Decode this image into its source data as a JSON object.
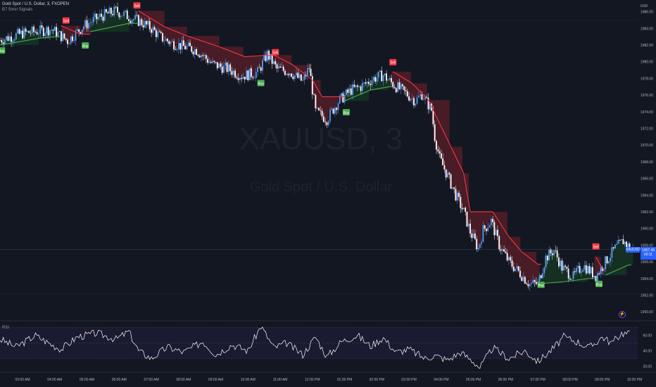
{
  "header": {
    "title": "Gold Spot / U.S. Dollar, 3, FXOPEN",
    "indicator": "B7 5min Signals"
  },
  "watermark": {
    "symbol": "XAUUSD, 3",
    "name": "Gold Spot / U.S. Dollar"
  },
  "price_tag": {
    "symbol": "XAUUSD",
    "price": "1957.49",
    "countdown": "00:11"
  },
  "zoom_icon": "lightning-icon",
  "rsi_label": "RSI",
  "colors": {
    "background": "#131722",
    "candle_up": "#5d9cf6",
    "candle_down": "#ffffff",
    "stop_red": "#f23645",
    "stop_green": "#4caf50",
    "fill_red": "#5a1f28",
    "fill_green": "#173824",
    "rsi_line": "#ffffff",
    "price_tag": "#2962ff"
  },
  "chart_data": [
    {
      "type": "candlestick",
      "title": "Gold Spot / U.S. Dollar, 3, FXOPEN",
      "yunit": "USD",
      "ylim": [
        1949,
        1987.4
      ],
      "y_ticks": [
        "1950.00",
        "1952.00",
        "1954.00",
        "1956.00",
        "1958.00",
        "1960.00",
        "1962.00",
        "1964.00",
        "1966.00",
        "1968.00",
        "1970.00",
        "1972.00",
        "1974.00",
        "1976.00",
        "1978.00",
        "1980.00",
        "1982.00",
        "1984.00",
        "1986.00"
      ],
      "x_ticks": [
        "03:00 AM",
        "04:00 AM",
        "05:00 AM",
        "06:00 AM",
        "07:00 AM",
        "08:00 AM",
        "09:00 AM",
        "10:00 AM",
        "11:00 AM",
        "12:00 PM",
        "01:00 PM",
        "02:00 PM",
        "03:00 PM",
        "04:00 PM",
        "05:00 PM",
        "06:00 PM",
        "07:00 PM",
        "08:00 PM",
        "09:00 PM",
        "10:00 PM"
      ],
      "x_range_hours": [
        2.3,
        22.1
      ],
      "price_path": [
        [
          2.3,
          1982.6
        ],
        [
          3.0,
          1983.4
        ],
        [
          3.9,
          1983.9
        ],
        [
          4.4,
          1982.5
        ],
        [
          4.9,
          1984.3
        ],
        [
          5.4,
          1985.4
        ],
        [
          5.9,
          1986.1
        ],
        [
          6.3,
          1985.4
        ],
        [
          6.7,
          1984.7
        ],
        [
          7.0,
          1984.0
        ],
        [
          7.3,
          1982.9
        ],
        [
          7.6,
          1982.3
        ],
        [
          8.0,
          1981.8
        ],
        [
          8.4,
          1981.4
        ],
        [
          8.9,
          1979.7
        ],
        [
          9.4,
          1979.1
        ],
        [
          9.8,
          1978.3
        ],
        [
          10.3,
          1978.7
        ],
        [
          10.6,
          1980.9
        ],
        [
          10.9,
          1979.1
        ],
        [
          11.3,
          1978.8
        ],
        [
          11.7,
          1977.6
        ],
        [
          11.9,
          1979.3
        ],
        [
          12.1,
          1974.0
        ],
        [
          12.45,
          1973.1
        ],
        [
          12.8,
          1975.2
        ],
        [
          13.2,
          1976.6
        ],
        [
          13.5,
          1977.0
        ],
        [
          13.9,
          1978.0
        ],
        [
          14.2,
          1978.4
        ],
        [
          14.5,
          1977.3
        ],
        [
          14.9,
          1976.2
        ],
        [
          15.2,
          1975.3
        ],
        [
          15.4,
          1976.1
        ],
        [
          15.7,
          1974.2
        ],
        [
          15.8,
          1971.0
        ],
        [
          15.95,
          1968.4
        ],
        [
          16.2,
          1966.3
        ],
        [
          16.45,
          1964.0
        ],
        [
          16.7,
          1962.0
        ],
        [
          16.9,
          1959.6
        ],
        [
          17.15,
          1957.6
        ],
        [
          17.3,
          1959.8
        ],
        [
          17.55,
          1960.9
        ],
        [
          17.8,
          1958.0
        ],
        [
          18.1,
          1956.0
        ],
        [
          18.45,
          1954.6
        ],
        [
          18.75,
          1953.3
        ],
        [
          19.0,
          1953.4
        ],
        [
          19.25,
          1956.5
        ],
        [
          19.5,
          1957.4
        ],
        [
          19.75,
          1955.3
        ],
        [
          20.1,
          1954.2
        ],
        [
          20.4,
          1955.6
        ],
        [
          20.8,
          1954.3
        ],
        [
          21.1,
          1956.0
        ],
        [
          21.4,
          1957.6
        ],
        [
          21.65,
          1958.5
        ],
        [
          21.9,
          1957.49
        ]
      ],
      "stop_line": [
        [
          2.3,
          1982.0,
          "green"
        ],
        [
          3.5,
          1982.8,
          "green"
        ],
        [
          4.0,
          1983.0,
          "green"
        ],
        [
          4.2,
          1984.3,
          "red"
        ],
        [
          4.8,
          1983.3,
          "red"
        ],
        [
          5.1,
          1983.6,
          "green"
        ],
        [
          6.3,
          1984.6,
          "green"
        ],
        [
          6.6,
          1986.1,
          "red"
        ],
        [
          7.4,
          1984.2,
          "red"
        ],
        [
          8.1,
          1983.1,
          "red"
        ],
        [
          9.1,
          1981.8,
          "red"
        ],
        [
          9.9,
          1980.6,
          "red"
        ],
        [
          10.8,
          1980.8,
          "red"
        ],
        [
          11.4,
          1979.6,
          "red"
        ],
        [
          12.0,
          1977.8,
          "red"
        ],
        [
          12.3,
          1975.8,
          "red"
        ],
        [
          12.8,
          1975.8,
          "red"
        ],
        [
          13.0,
          1975.3,
          "green"
        ],
        [
          13.8,
          1976.6,
          "green"
        ],
        [
          14.4,
          1977.0,
          "green"
        ],
        [
          14.5,
          1978.8,
          "red"
        ],
        [
          15.1,
          1977.4,
          "red"
        ],
        [
          15.6,
          1975.4,
          "red"
        ],
        [
          16.3,
          1969.8,
          "red"
        ],
        [
          16.7,
          1966.6,
          "red"
        ],
        [
          16.9,
          1962.0,
          "red"
        ],
        [
          17.6,
          1962.0,
          "red"
        ],
        [
          18.1,
          1959.0,
          "red"
        ],
        [
          18.5,
          1957.2,
          "red"
        ],
        [
          19.0,
          1955.7,
          "red"
        ],
        [
          19.1,
          1953.4,
          "green"
        ],
        [
          19.8,
          1953.6,
          "green"
        ],
        [
          20.6,
          1954.0,
          "green"
        ],
        [
          20.8,
          1956.6,
          "red"
        ],
        [
          21.0,
          1955.2,
          "red"
        ],
        [
          21.1,
          1954.4,
          "green"
        ],
        [
          21.8,
          1955.6,
          "green"
        ]
      ],
      "signals": [
        {
          "label": "Sell",
          "hour": 4.35,
          "price": 1984.9,
          "side": "sell"
        },
        {
          "label": "Buy",
          "hour": 2.35,
          "price": 1981.3,
          "side": "buy"
        },
        {
          "label": "Buy",
          "hour": 4.95,
          "price": 1981.9,
          "side": "buy"
        },
        {
          "label": "Sell",
          "hour": 6.55,
          "price": 1986.7,
          "side": "sell"
        },
        {
          "label": "Sell",
          "hour": 10.85,
          "price": 1981.1,
          "side": "sell"
        },
        {
          "label": "Buy",
          "hour": 10.4,
          "price": 1977.4,
          "side": "buy"
        },
        {
          "label": "Buy",
          "hour": 13.05,
          "price": 1973.9,
          "side": "buy"
        },
        {
          "label": "Sell",
          "hour": 14.5,
          "price": 1979.9,
          "side": "sell"
        },
        {
          "label": "Buy",
          "hour": 19.1,
          "price": 1953.2,
          "side": "buy"
        },
        {
          "label": "Sell",
          "hour": 20.8,
          "price": 1957.8,
          "side": "sell"
        },
        {
          "label": "Buy",
          "hour": 20.9,
          "price": 1953.3,
          "side": "buy"
        }
      ],
      "last_price": 1957.49
    },
    {
      "type": "line",
      "title": "RSI",
      "ylim": [
        14,
        77
      ],
      "y_ticks": [
        "20.00",
        "40.00",
        "60.00"
      ],
      "bands": [
        30,
        70
      ],
      "midline": 50,
      "rsi_keypoints": [
        [
          2.3,
          55
        ],
        [
          2.8,
          45
        ],
        [
          3.4,
          60
        ],
        [
          3.9,
          48
        ],
        [
          4.2,
          42
        ],
        [
          4.7,
          58
        ],
        [
          5.3,
          63
        ],
        [
          5.9,
          55
        ],
        [
          6.3,
          65
        ],
        [
          6.6,
          40
        ],
        [
          7.0,
          30
        ],
        [
          7.5,
          45
        ],
        [
          8.0,
          38
        ],
        [
          8.6,
          52
        ],
        [
          9.0,
          35
        ],
        [
          9.5,
          48
        ],
        [
          10.0,
          40
        ],
        [
          10.4,
          72
        ],
        [
          10.8,
          44
        ],
        [
          11.2,
          50
        ],
        [
          11.7,
          35
        ],
        [
          12.1,
          58
        ],
        [
          12.45,
          32
        ],
        [
          12.9,
          52
        ],
        [
          13.4,
          60
        ],
        [
          13.8,
          46
        ],
        [
          14.2,
          57
        ],
        [
          14.6,
          38
        ],
        [
          15.0,
          42
        ],
        [
          15.5,
          30
        ],
        [
          15.8,
          34
        ],
        [
          16.2,
          28
        ],
        [
          16.6,
          38
        ],
        [
          17.0,
          26
        ],
        [
          17.2,
          18
        ],
        [
          17.6,
          44
        ],
        [
          18.1,
          30
        ],
        [
          18.6,
          40
        ],
        [
          19.0,
          26
        ],
        [
          19.5,
          44
        ],
        [
          19.8,
          58
        ],
        [
          20.2,
          52
        ],
        [
          20.6,
          44
        ],
        [
          21.0,
          58
        ],
        [
          21.3,
          50
        ],
        [
          21.6,
          63
        ],
        [
          21.9,
          62
        ]
      ]
    }
  ]
}
